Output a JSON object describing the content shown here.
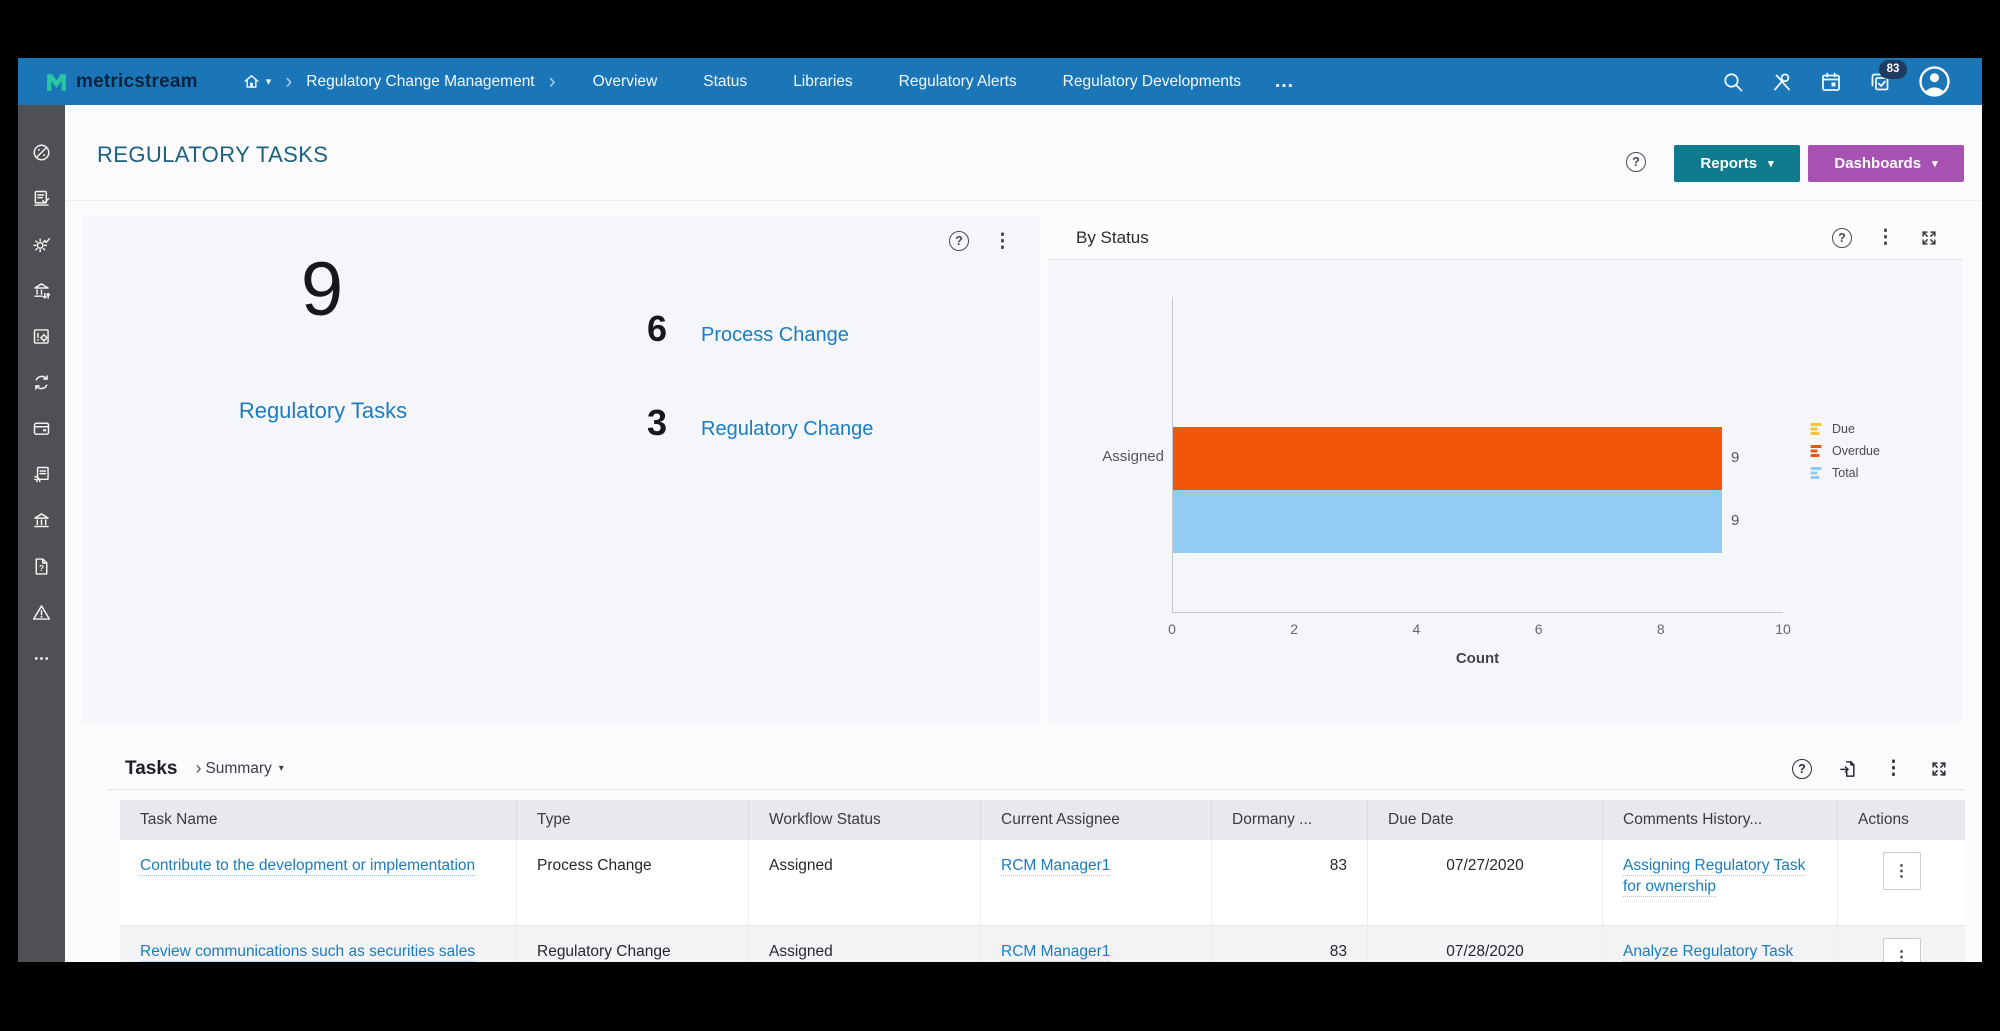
{
  "navbar": {
    "brand": "metricstream",
    "breadcrumb_root": "Regulatory Change Management",
    "items": [
      "Overview",
      "Status",
      "Libraries",
      "Regulatory Alerts",
      "Regulatory Developments"
    ],
    "overflow_label": "…",
    "badge_count": "83",
    "right_icons": [
      "search-icon",
      "tools-icon",
      "calendar-icon",
      "tasks-icon",
      "avatar"
    ]
  },
  "sidebar": {
    "icons": [
      "compass-icon",
      "audit-doc-icon",
      "gear-check-icon",
      "org-exchange-icon",
      "device-config-icon",
      "sync-icon",
      "wallet-icon",
      "news-icon",
      "bank-icon",
      "document-help-icon",
      "alert-triangle-icon",
      "more-icon"
    ]
  },
  "page": {
    "title": "REGULATORY TASKS",
    "reports_label": "Reports",
    "dashboards_label": "Dashboards"
  },
  "kpi": {
    "total_value": "9",
    "total_label": "Regulatory Tasks",
    "items": [
      {
        "value": "6",
        "label": "Process Change"
      },
      {
        "value": "3",
        "label": "Regulatory Change"
      }
    ]
  },
  "chart_data": {
    "type": "bar",
    "orientation": "horizontal",
    "title": "By Status",
    "categories": [
      "Assigned"
    ],
    "series": [
      {
        "name": "Due",
        "color": "#efc63c",
        "values": [
          0
        ]
      },
      {
        "name": "Overdue",
        "color": "#f2560a",
        "values": [
          9
        ]
      },
      {
        "name": "Total",
        "color": "#92ccf4",
        "values": [
          9
        ]
      }
    ],
    "xlabel": "Count",
    "xlim": [
      0,
      10
    ],
    "xticks": [
      0,
      2,
      4,
      6,
      8,
      10
    ],
    "legend_position": "right",
    "value_labels": true,
    "grid": false
  },
  "tasks": {
    "title": "Tasks",
    "view": "Summary",
    "columns": [
      "Task Name",
      "Type",
      "Workflow Status",
      "Current Assignee",
      "Dormany ...",
      "Due Date",
      "Comments History...",
      "Actions"
    ],
    "rows": [
      {
        "task_name": "Contribute to the development or implementation",
        "type": "Process Change",
        "workflow_status": "Assigned",
        "current_assignee": "RCM Manager1",
        "dormancy": "83",
        "due_date": "07/27/2020",
        "comments": "Assigning Regulatory Task for ownership"
      },
      {
        "task_name": "Review communications such as securities sales advertising",
        "type": "Regulatory Change",
        "workflow_status": "Assigned",
        "current_assignee": "RCM Manager1",
        "dormancy": "83",
        "due_date": "07/28/2020",
        "comments": "Analyze Regulatory Task record"
      }
    ]
  },
  "icons": {
    "help_glyph": "?",
    "kebab_glyph": "⋮",
    "caret_glyph": "▾",
    "chevron_glyph": "›"
  },
  "colors": {
    "navbar": "#1b76b8",
    "brand_teal": "#29c5a4",
    "sidebar": "#4f5053",
    "page_title": "#1b617e",
    "reports_button": "#0e7b8f",
    "dashboards_button": "#a751b2",
    "link": "#1a7cc1",
    "bar_overdue": "#f2560a",
    "bar_total": "#92ccf4",
    "legend_due": "#efc63c"
  }
}
